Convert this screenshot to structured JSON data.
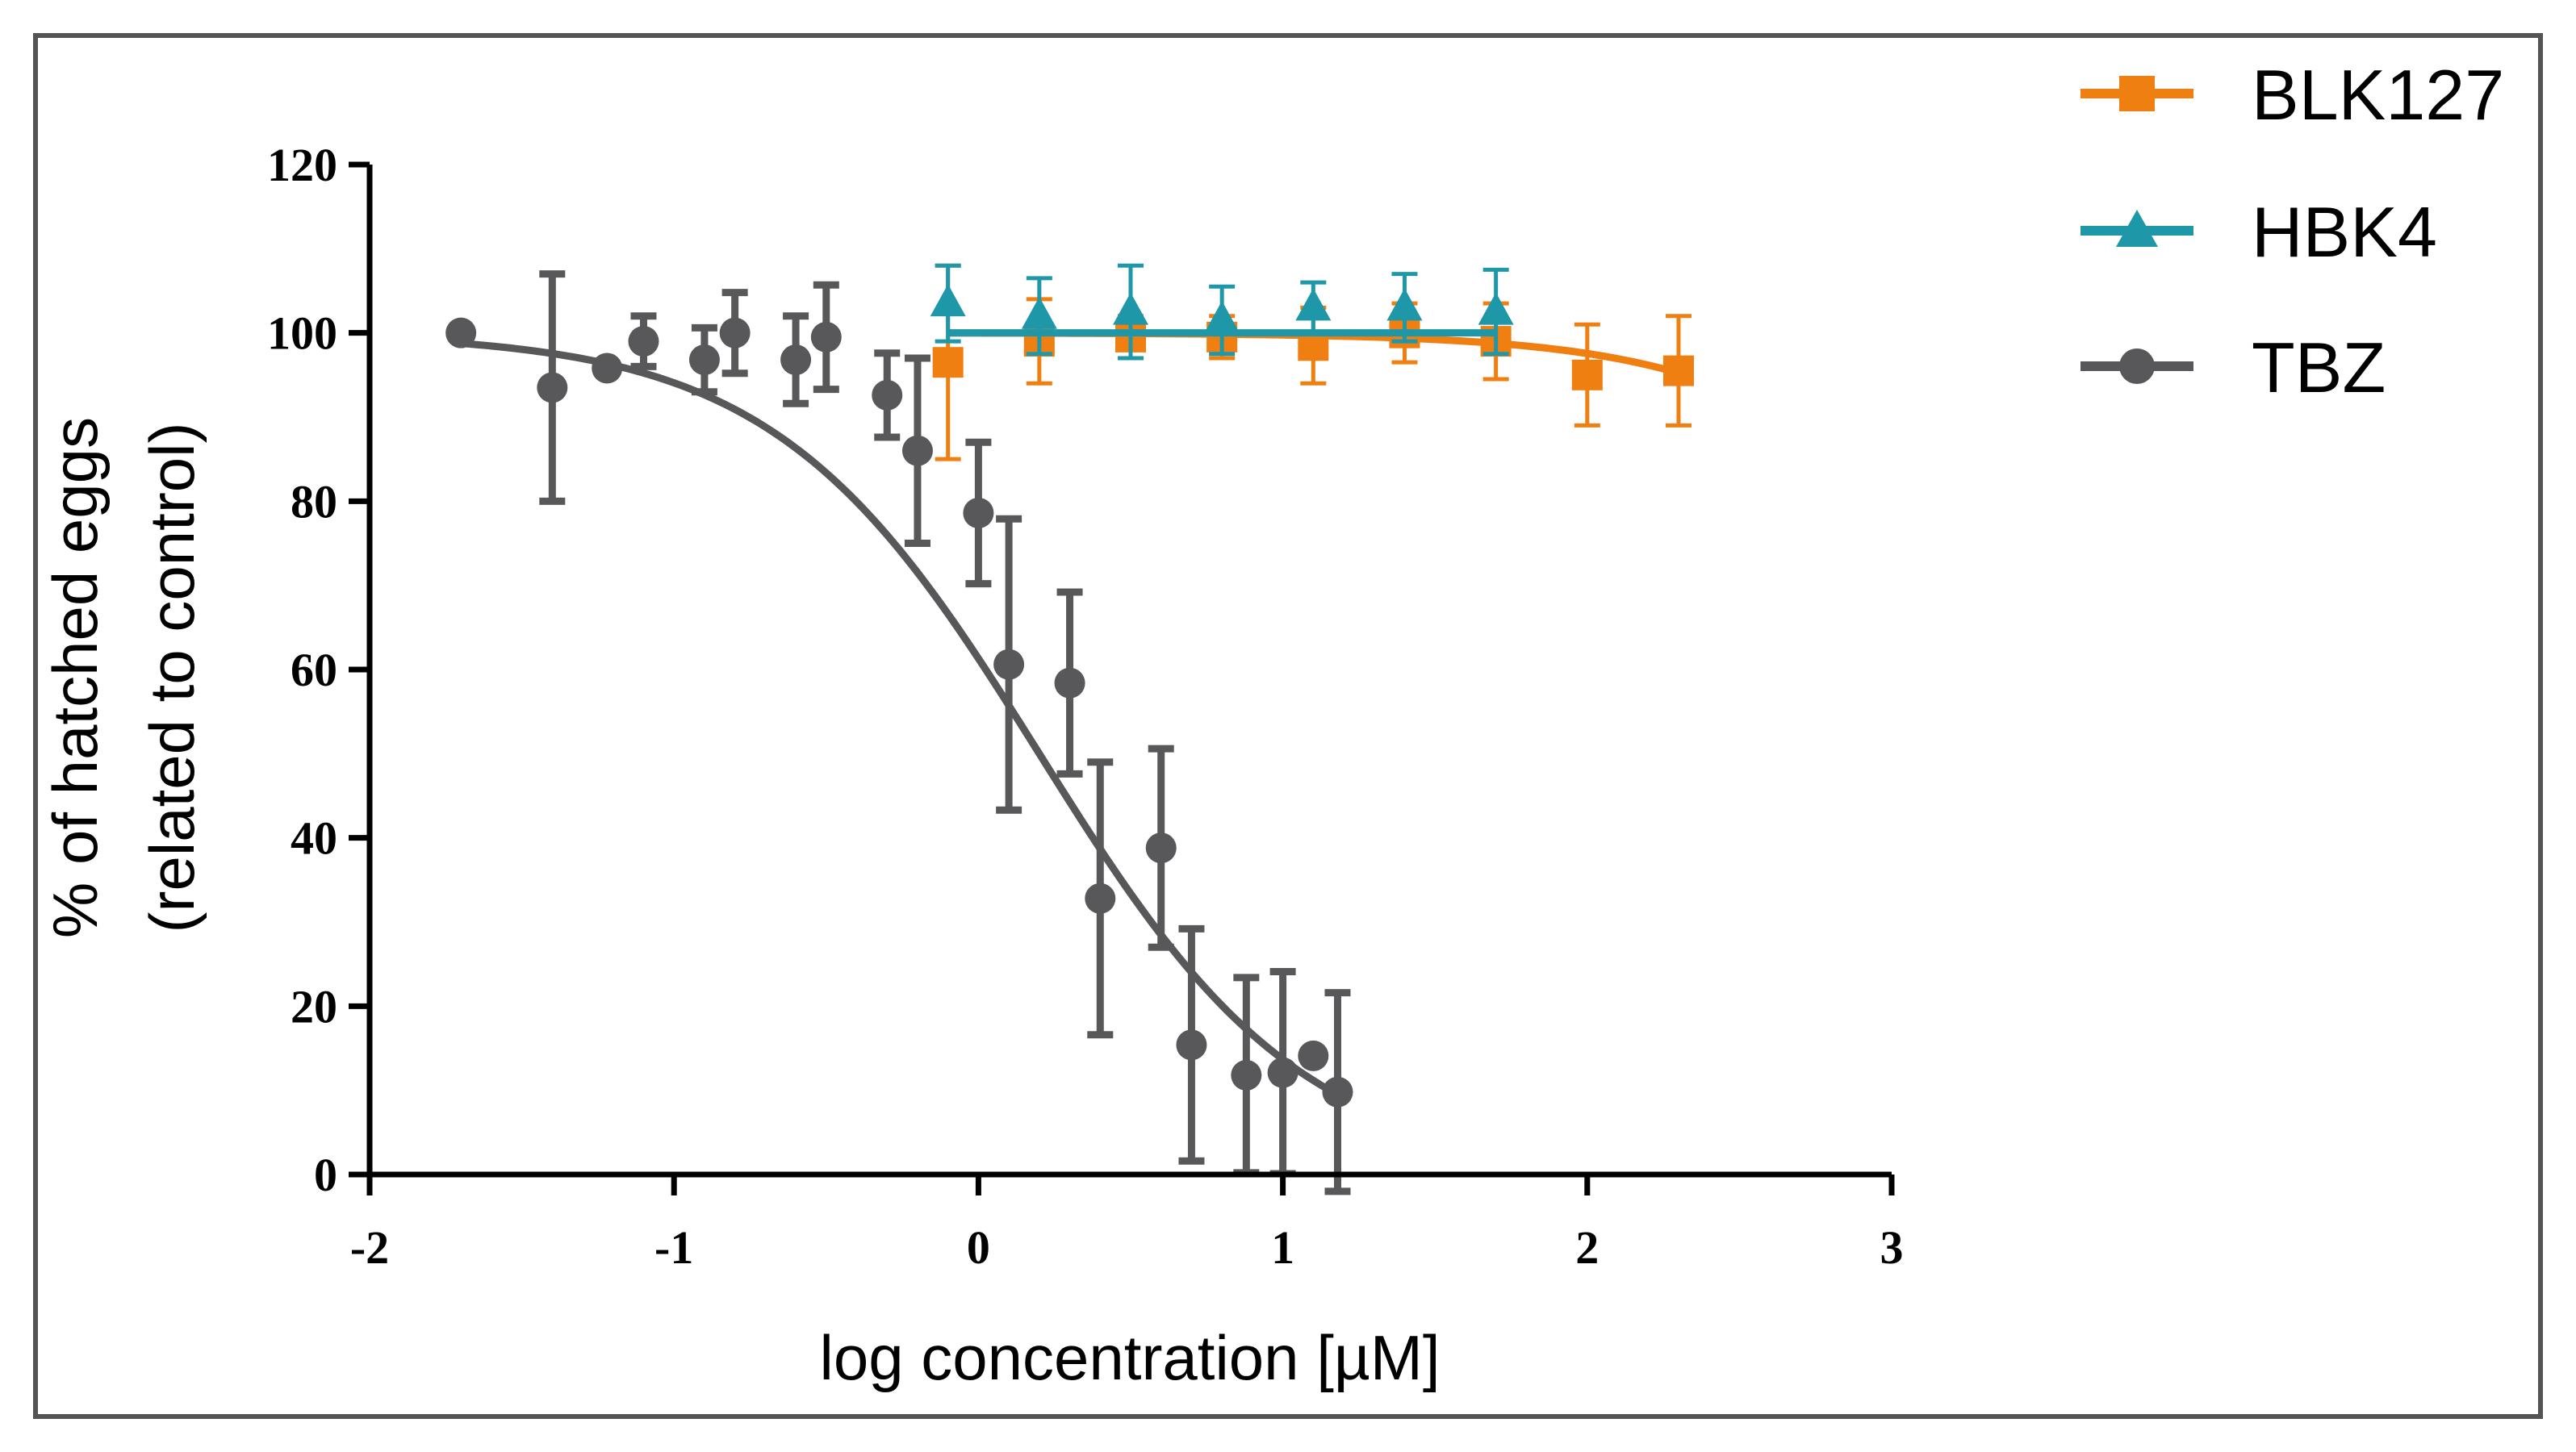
{
  "chart_data": {
    "type": "scatter",
    "title": "",
    "xlabel": "log concentration  [µM]",
    "ylabel_line1": "% of hatched eggs",
    "ylabel_line2": "(related to control)",
    "xlim": [
      -2,
      3
    ],
    "ylim": [
      0,
      120
    ],
    "xticks": [
      -2,
      -1,
      0,
      1,
      2,
      3
    ],
    "yticks": [
      0,
      20,
      40,
      60,
      80,
      100,
      120
    ],
    "grid": false,
    "legend_position": "top-right, outside plot",
    "series": [
      {
        "name": "BLK127",
        "color": "#F07F12",
        "marker": "square",
        "points": [
          {
            "x": -0.1,
            "y": 96.5,
            "err": 11.5
          },
          {
            "x": 0.2,
            "y": 99,
            "err": 5
          },
          {
            "x": 0.5,
            "y": 99.5,
            "err": 2.5
          },
          {
            "x": 0.8,
            "y": 99.5,
            "err": 2.5
          },
          {
            "x": 1.1,
            "y": 98.5,
            "err": 4.5
          },
          {
            "x": 1.4,
            "y": 100,
            "err": 3.5
          },
          {
            "x": 1.7,
            "y": 99,
            "err": 4.5
          },
          {
            "x": 2.0,
            "y": 95,
            "err": 6
          },
          {
            "x": 2.3,
            "y": 95.5,
            "err": 6.5
          }
        ],
        "fit": {
          "kind": "sigmoid",
          "top": 100,
          "bottom": 0,
          "logIC50": 3.6,
          "hill": -1,
          "xmin": -0.1,
          "xmax": 2.3
        }
      },
      {
        "name": "HBK4",
        "color": "#1E98A8",
        "marker": "triangle",
        "points": [
          {
            "x": -0.1,
            "y": 103.5,
            "err": 4.5
          },
          {
            "x": 0.2,
            "y": 102,
            "err": 4.5
          },
          {
            "x": 0.5,
            "y": 102.5,
            "err": 5.5
          },
          {
            "x": 0.8,
            "y": 101.5,
            "err": 4
          },
          {
            "x": 1.1,
            "y": 103,
            "err": 3
          },
          {
            "x": 1.4,
            "y": 103,
            "err": 4
          },
          {
            "x": 1.7,
            "y": 102.5,
            "err": 5
          }
        ],
        "fit": {
          "kind": "constant",
          "value": 100,
          "xmin": -0.1,
          "xmax": 1.7
        }
      },
      {
        "name": "TBZ",
        "color": "#58585A",
        "marker": "circle",
        "points": [
          {
            "x": -1.7,
            "y": 100,
            "err": 0
          },
          {
            "x": -1.4,
            "y": 93.5,
            "err": 13.5
          },
          {
            "x": -1.22,
            "y": 95.8,
            "err": 0
          },
          {
            "x": -1.1,
            "y": 99,
            "err": 3
          },
          {
            "x": -0.9,
            "y": 96.8,
            "err": 3.8
          },
          {
            "x": -0.8,
            "y": 100,
            "err": 4.8
          },
          {
            "x": -0.6,
            "y": 96.8,
            "err": 5.2
          },
          {
            "x": -0.5,
            "y": 99.5,
            "err": 6.2
          },
          {
            "x": -0.3,
            "y": 92.6,
            "err": 5
          },
          {
            "x": -0.2,
            "y": 86,
            "err": 11
          },
          {
            "x": 0.0,
            "y": 78.6,
            "err": 8.4
          },
          {
            "x": 0.1,
            "y": 60.6,
            "err": 17.3
          },
          {
            "x": 0.3,
            "y": 58.4,
            "err": 10.8
          },
          {
            "x": 0.4,
            "y": 32.8,
            "err": 16.2
          },
          {
            "x": 0.6,
            "y": 38.8,
            "err": 11.8
          },
          {
            "x": 0.7,
            "y": 15.4,
            "err": 13.8
          },
          {
            "x": 0.88,
            "y": 11.8,
            "err": 11.6
          },
          {
            "x": 1.0,
            "y": 12.1,
            "err": 12
          },
          {
            "x": 1.1,
            "y": 14.1,
            "err": 0
          },
          {
            "x": 1.18,
            "y": 9.8,
            "err": 11.8
          }
        ],
        "fit": {
          "kind": "sigmoid",
          "top": 100,
          "bottom": 0,
          "logIC50": 0.2,
          "hill": -1,
          "xmin": -1.7,
          "xmax": 1.18
        }
      }
    ]
  }
}
